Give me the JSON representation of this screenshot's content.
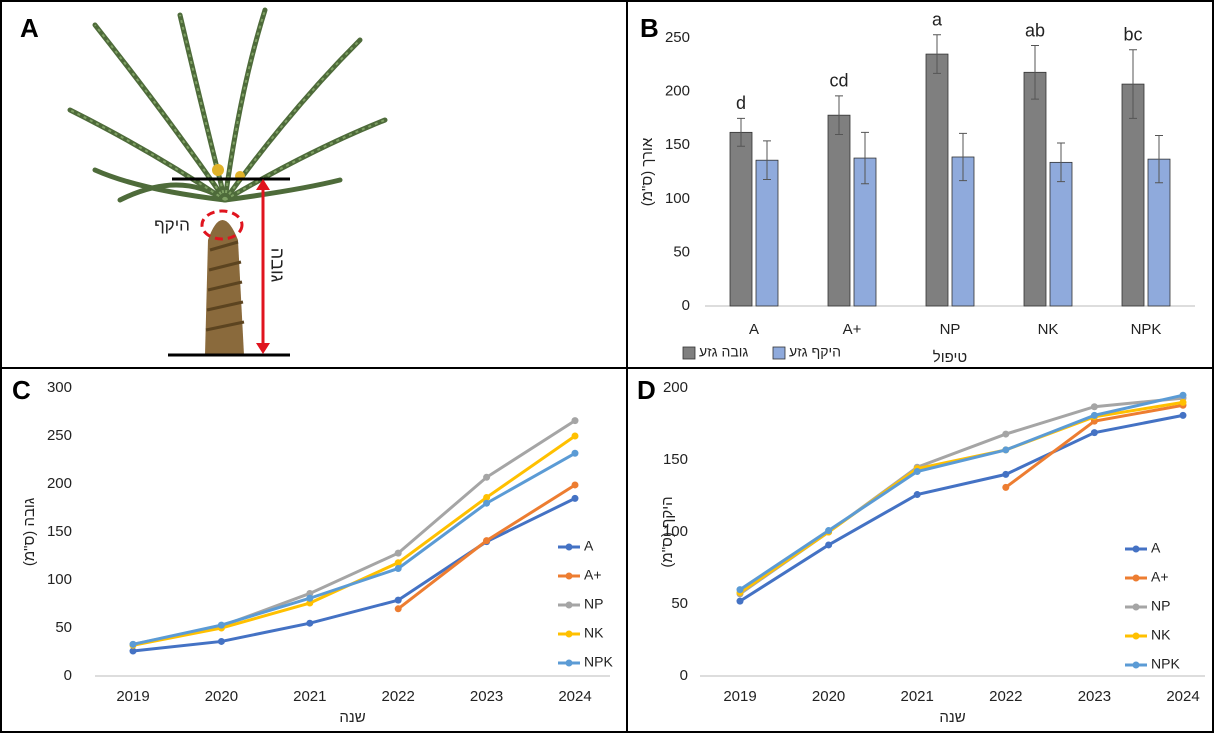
{
  "photo_panel": {
    "panel_label": "A",
    "circumference_label": "היקף",
    "height_label": "גובה"
  },
  "chart_data": [
    {
      "type": "bar",
      "panel_label": "B",
      "x_label": "טיפול",
      "y_label": "אורך (ס\"מ)",
      "categories": [
        "A",
        "A+",
        "NP",
        "NK",
        "NPK"
      ],
      "annotations": [
        "d",
        "cd",
        "a",
        "ab",
        "bc"
      ],
      "series": [
        {
          "name": "גובה גזע",
          "color": "#7f7f7f",
          "values": [
            162,
            178,
            235,
            218,
            207
          ],
          "errors": [
            13,
            18,
            18,
            25,
            32
          ]
        },
        {
          "name": "היקף גזע",
          "color": "#8faadc",
          "values": [
            136,
            138,
            139,
            134,
            137
          ],
          "errors": [
            18,
            24,
            22,
            18,
            22
          ]
        }
      ],
      "ylim": [
        0,
        250
      ],
      "yticks": [
        0,
        50,
        100,
        150,
        200,
        250
      ],
      "grid": false,
      "legend": "bottom"
    },
    {
      "type": "line",
      "panel_label": "C",
      "x_label": "שנה",
      "y_label": "גובה (ס\"מ)",
      "categories": [
        "2019",
        "2020",
        "2021",
        "2022",
        "2023",
        "2024"
      ],
      "series": [
        {
          "name": "A",
          "color": "#4472c4",
          "values": [
            26,
            36,
            55,
            79,
            140,
            185
          ]
        },
        {
          "name": "A+",
          "color": "#ed7d31",
          "values": [
            null,
            null,
            null,
            70,
            141,
            199
          ]
        },
        {
          "name": "NP",
          "color": "#a5a5a5",
          "values": [
            33,
            52,
            86,
            128,
            207,
            266
          ]
        },
        {
          "name": "NK",
          "color": "#ffc000",
          "values": [
            32,
            50,
            76,
            118,
            186,
            250
          ]
        },
        {
          "name": "NPK",
          "color": "#5b9bd5",
          "values": [
            33,
            53,
            81,
            112,
            180,
            232
          ]
        }
      ],
      "ylim": [
        0,
        300
      ],
      "yticks": [
        0,
        50,
        100,
        150,
        200,
        250,
        300
      ],
      "grid": false,
      "legend": "right"
    },
    {
      "type": "line",
      "panel_label": "D",
      "x_label": "שנה",
      "y_label": "היקף (ס\"מ)",
      "categories": [
        "2019",
        "2020",
        "2021",
        "2022",
        "2023",
        "2024"
      ],
      "series": [
        {
          "name": "A",
          "color": "#4472c4",
          "values": [
            52,
            91,
            126,
            140,
            169,
            181
          ]
        },
        {
          "name": "A+",
          "color": "#ed7d31",
          "values": [
            null,
            null,
            null,
            131,
            177,
            188
          ]
        },
        {
          "name": "NP",
          "color": "#a5a5a5",
          "values": [
            57,
            100,
            145,
            168,
            187,
            193
          ]
        },
        {
          "name": "NK",
          "color": "#ffc000",
          "values": [
            58,
            100,
            144,
            157,
            180,
            190
          ]
        },
        {
          "name": "NPK",
          "color": "#5b9bd5",
          "values": [
            60,
            101,
            142,
            157,
            181,
            195
          ]
        }
      ],
      "ylim": [
        0,
        200
      ],
      "yticks": [
        0,
        50,
        100,
        150,
        200
      ],
      "grid": false,
      "legend": "right"
    }
  ]
}
